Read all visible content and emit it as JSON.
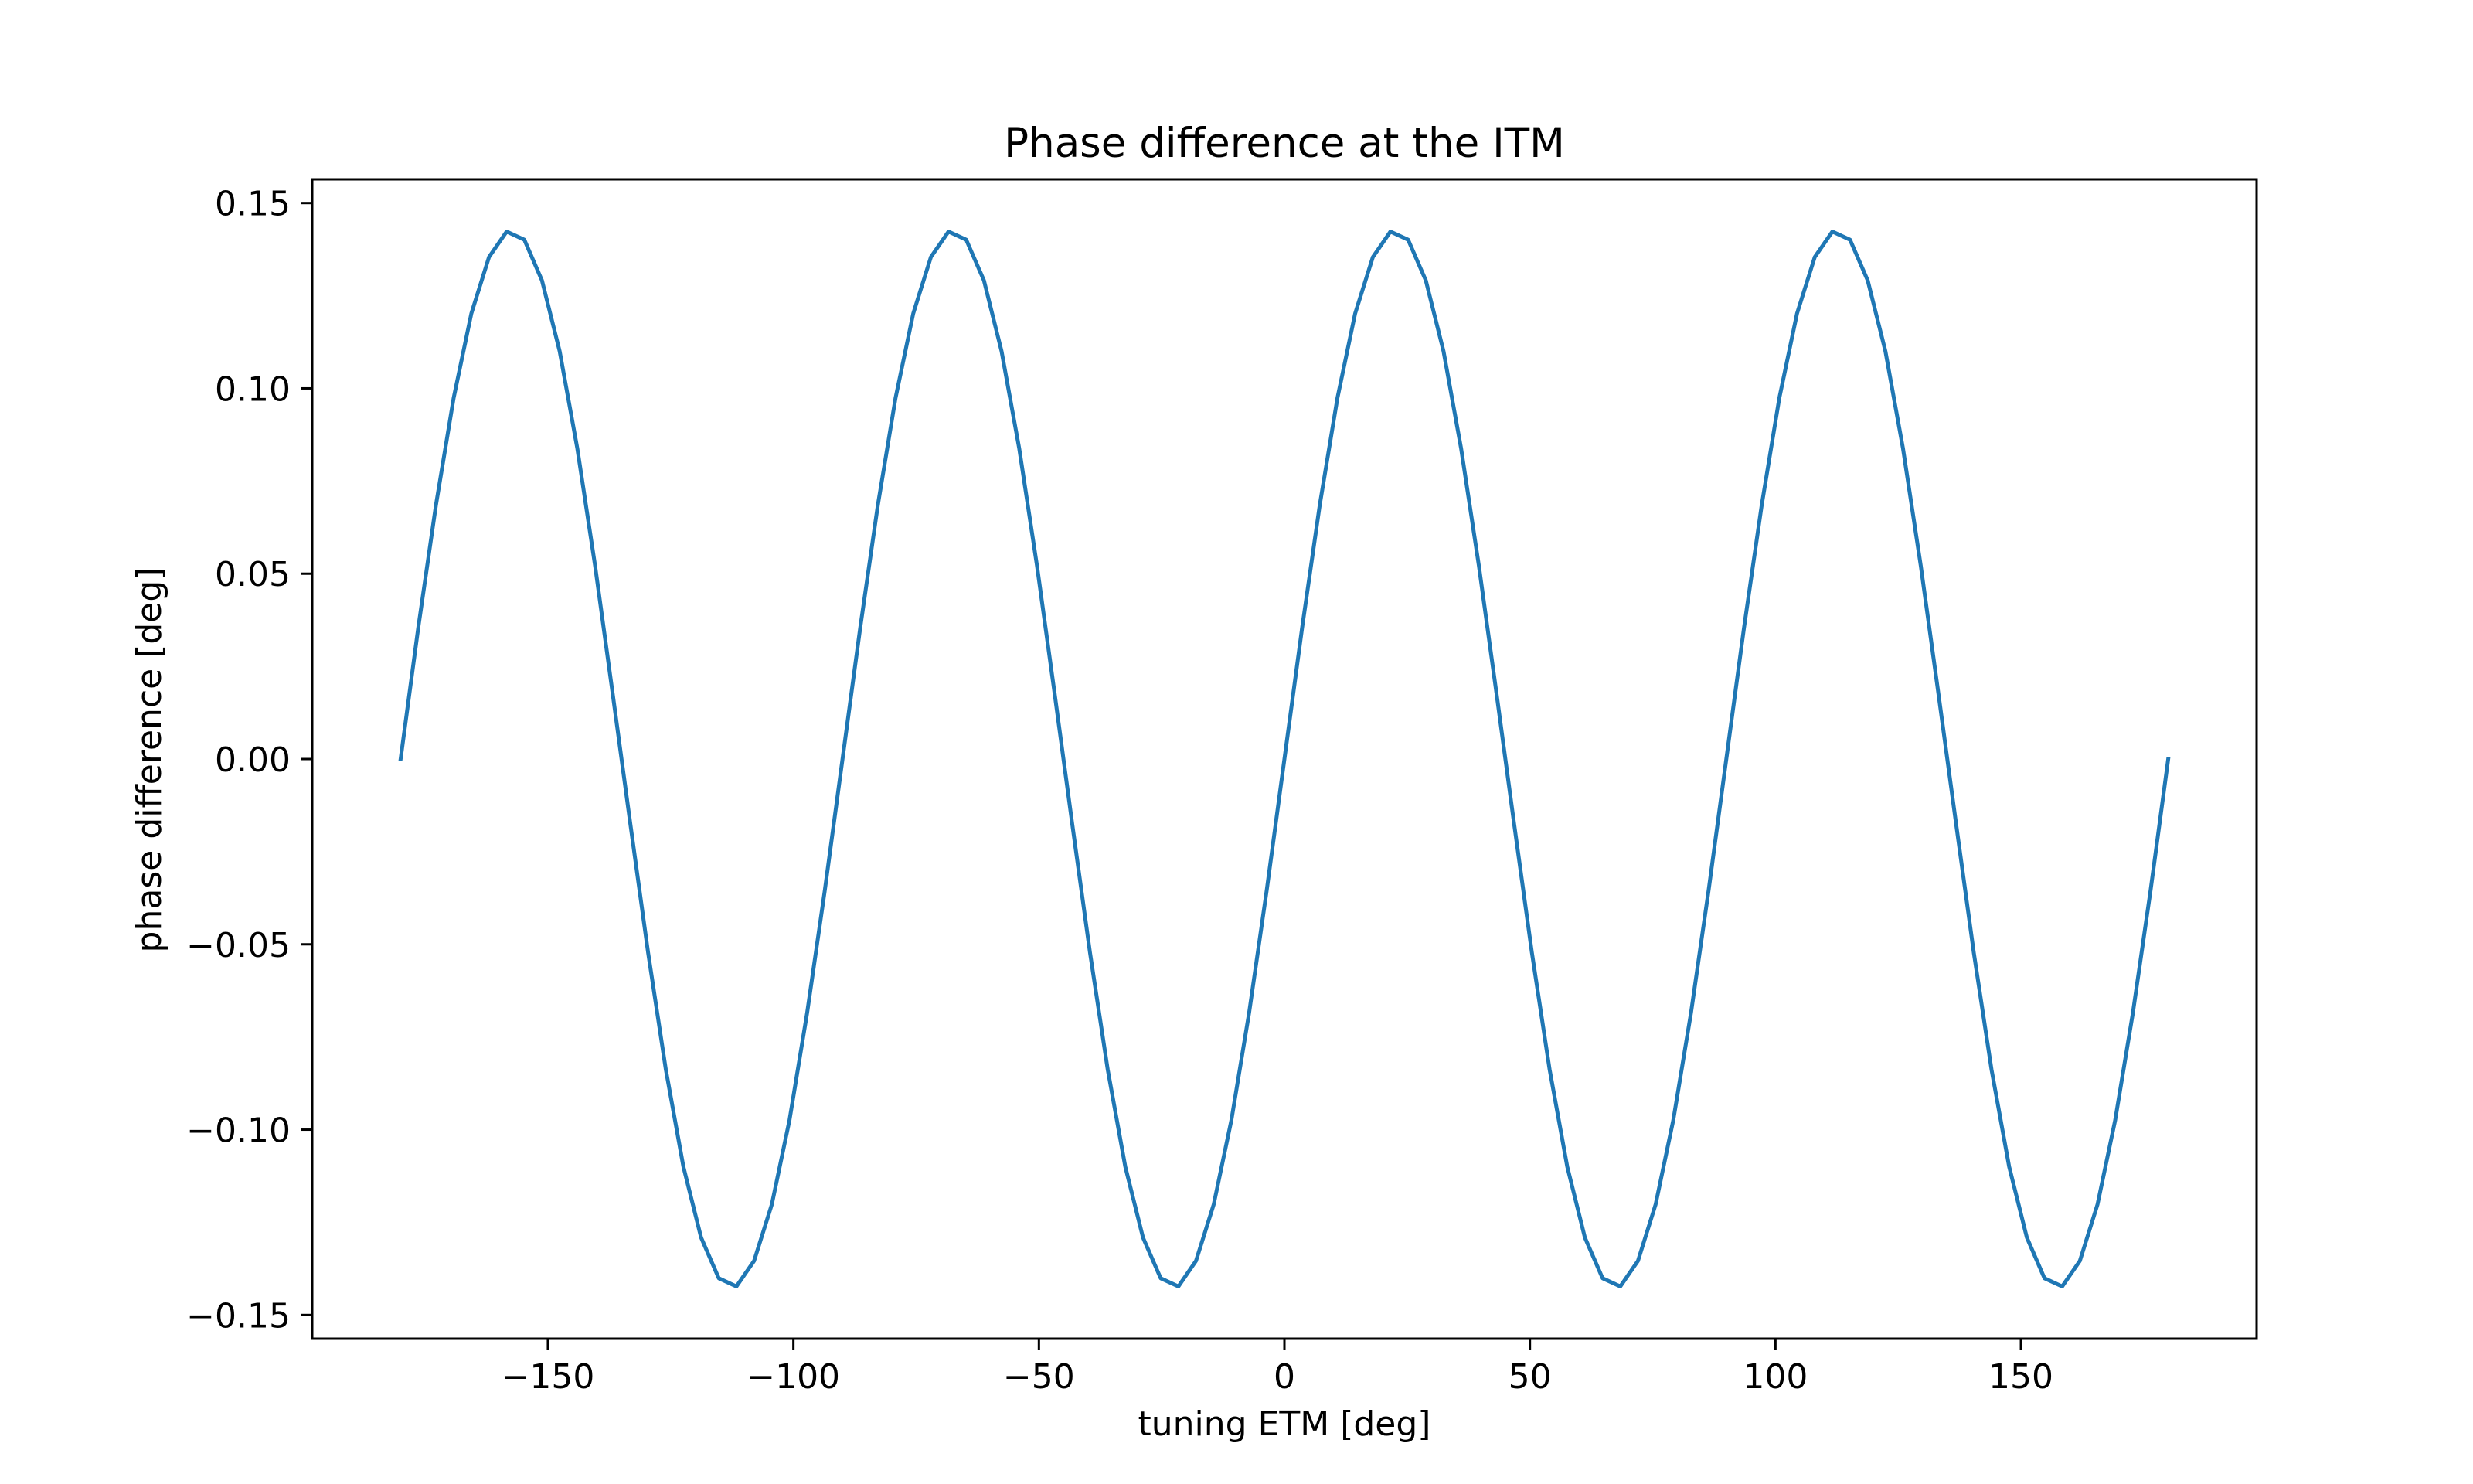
{
  "chart_data": {
    "type": "line",
    "title": "Phase difference at the ITM",
    "xlabel": "tuning ETM [deg]",
    "ylabel": "phase difference [deg]",
    "xlim": [
      -198,
      198
    ],
    "ylim": [
      -0.1564,
      0.1564
    ],
    "xticks": [
      {
        "value": -150,
        "label": "−150"
      },
      {
        "value": -100,
        "label": "−100"
      },
      {
        "value": -50,
        "label": "−50"
      },
      {
        "value": 0,
        "label": "0"
      },
      {
        "value": 50,
        "label": "50"
      },
      {
        "value": 100,
        "label": "100"
      },
      {
        "value": 150,
        "label": "150"
      }
    ],
    "yticks": [
      {
        "value": -0.15,
        "label": "−0.15"
      },
      {
        "value": -0.1,
        "label": "−0.10"
      },
      {
        "value": -0.05,
        "label": "−0.05"
      },
      {
        "value": 0.0,
        "label": "0.00"
      },
      {
        "value": 0.05,
        "label": "0.05"
      },
      {
        "value": 0.1,
        "label": "0.10"
      },
      {
        "value": 0.15,
        "label": "0.15"
      }
    ],
    "grid": false,
    "colors": {
      "line": "#1f77b4",
      "axes": "#000000",
      "background": "#ffffff"
    },
    "series": [
      {
        "x": [
          -180.0,
          -176.4,
          -172.8,
          -169.2,
          -165.6,
          -162.0,
          -158.4,
          -154.8,
          -151.2,
          -147.6,
          -144.0,
          -140.4,
          -136.8,
          -133.2,
          -129.6,
          -126.0,
          -122.4,
          -118.8,
          -115.2,
          -111.6,
          -108.0,
          -104.4,
          -100.8,
          -97.2,
          -93.6,
          -90.0,
          -86.4,
          -82.8,
          -79.2,
          -75.6,
          -72.0,
          -68.4,
          -64.8,
          -61.2,
          -57.6,
          -54.0,
          -50.4,
          -46.8,
          -43.2,
          -39.6,
          -36.0,
          -32.4,
          -28.8,
          -25.2,
          -21.6,
          -18.0,
          -14.4,
          -10.8,
          -7.2,
          -3.6,
          0.0,
          3.6,
          7.2,
          10.8,
          14.4,
          18.0,
          21.6,
          25.2,
          28.8,
          32.4,
          36.0,
          39.6,
          43.2,
          46.8,
          50.4,
          54.0,
          57.6,
          61.2,
          64.8,
          68.4,
          72.0,
          75.6,
          79.2,
          82.8,
          86.4,
          90.0,
          93.6,
          97.2,
          100.8,
          104.4,
          108.0,
          111.6,
          115.2,
          118.8,
          122.4,
          126.0,
          129.6,
          133.2,
          136.8,
          140.4,
          144.0,
          147.6,
          151.2,
          154.8,
          158.4,
          162.0,
          165.6,
          169.2,
          172.8,
          176.4,
          180.0
        ],
        "y": [
          0.0,
          0.0354,
          0.0685,
          0.0974,
          0.1202,
          0.1354,
          0.1423,
          0.1401,
          0.1291,
          0.11,
          0.0837,
          0.0522,
          0.0176,
          -0.0176,
          -0.0522,
          -0.0837,
          -0.11,
          -0.1291,
          -0.1401,
          -0.1423,
          -0.1354,
          -0.1202,
          -0.0974,
          -0.0685,
          -0.0354,
          0.0,
          0.0354,
          0.0685,
          0.0974,
          0.1202,
          0.1354,
          0.1423,
          0.1401,
          0.1291,
          0.11,
          0.0837,
          0.0522,
          0.0176,
          -0.0176,
          -0.0522,
          -0.0837,
          -0.11,
          -0.1291,
          -0.1401,
          -0.1423,
          -0.1354,
          -0.1202,
          -0.0974,
          -0.0685,
          -0.0354,
          0.0,
          0.0354,
          0.0685,
          0.0974,
          0.1202,
          0.1354,
          0.1423,
          0.1401,
          0.1291,
          0.11,
          0.0837,
          0.0522,
          0.0176,
          -0.0176,
          -0.0522,
          -0.0837,
          -0.11,
          -0.1291,
          -0.1401,
          -0.1423,
          -0.1354,
          -0.1202,
          -0.0974,
          -0.0685,
          -0.0354,
          0.0,
          0.0354,
          0.0685,
          0.0974,
          0.1202,
          0.1354,
          0.1423,
          0.1401,
          0.1291,
          0.11,
          0.0837,
          0.0522,
          0.0176,
          -0.0176,
          -0.0522,
          -0.0837,
          -0.11,
          -0.1291,
          -0.1401,
          -0.1423,
          -0.1354,
          -0.1202,
          -0.0974,
          -0.0685,
          -0.0354,
          0.0
        ]
      }
    ]
  }
}
